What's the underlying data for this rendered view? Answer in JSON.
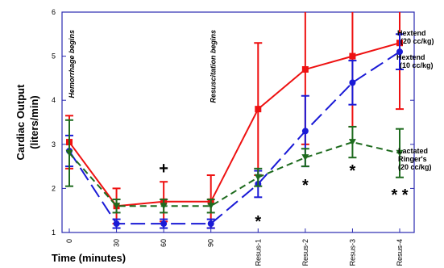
{
  "chart_data": {
    "type": "line",
    "xlabel": "Time (minutes)",
    "ylabel_lines": [
      "Cardiac Output",
      "(liters/min)"
    ],
    "categories": [
      "0",
      "30",
      "60",
      "90",
      "Resus-1",
      "Resus-2",
      "Resus-3",
      "Resus-4"
    ],
    "ylim": [
      1,
      6
    ],
    "yticks": [
      "1",
      "2",
      "3",
      "4",
      "5",
      "6"
    ],
    "grid": false,
    "series": [
      {
        "name_lines": [
          "Hextend",
          "(20 cc/kg)"
        ],
        "color": "#ee1111",
        "dash": "solid",
        "marker": "square",
        "values": [
          3.05,
          1.6,
          1.7,
          1.7,
          3.8,
          4.7,
          5.0,
          5.3
        ],
        "error": [
          0.6,
          0.4,
          0.45,
          0.6,
          1.5,
          1.7,
          1.6,
          1.5
        ]
      },
      {
        "name_lines": [
          "Hextend",
          "(10 cc/kg)"
        ],
        "color": "#1a1ad6",
        "dash": "longdash",
        "marker": "circle",
        "values": [
          2.85,
          1.2,
          1.2,
          1.2,
          2.1,
          3.3,
          4.4,
          5.1
        ],
        "error": [
          0.35,
          0.1,
          0.1,
          0.1,
          0.3,
          0.8,
          0.5,
          0.4
        ]
      },
      {
        "name_lines": [
          "Lactated",
          "Ringer's",
          "(20 cc/kg)"
        ],
        "color": "#1e6b1e",
        "dash": "shortdash",
        "marker": "triangle-down",
        "values": [
          2.8,
          1.6,
          1.6,
          1.6,
          2.25,
          2.7,
          3.05,
          2.8
        ],
        "error": [
          0.75,
          0.15,
          0.15,
          0.15,
          0.2,
          0.2,
          0.35,
          0.55
        ]
      }
    ],
    "annotations": [
      {
        "text": "Hemorrhage begins",
        "at": "0"
      },
      {
        "text": "Resuscitation begins",
        "at": "90"
      }
    ],
    "significance_markers": [
      {
        "text": "+",
        "at": "60"
      },
      {
        "text": "*",
        "at": "Resus-1"
      },
      {
        "text": "*",
        "at": "Resus-2"
      },
      {
        "text": "*",
        "at": "Resus-3"
      },
      {
        "text": "* *",
        "at": "Resus-4"
      }
    ]
  }
}
